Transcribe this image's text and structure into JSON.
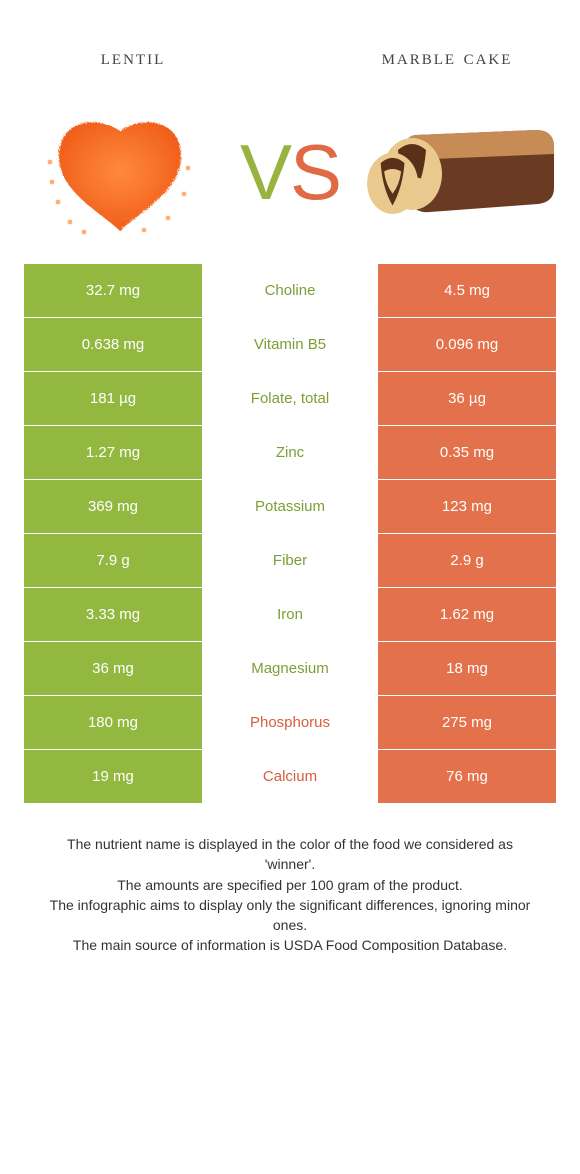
{
  "colors": {
    "lentil": "#93b840",
    "cake": "#e3714b",
    "lentil_text": "#7e9e36",
    "cake_text": "#d65f3d",
    "white": "#ffffff",
    "body": "#333333"
  },
  "header": {
    "left_title": "lentil",
    "right_title": "marble cake",
    "vs_v": "V",
    "vs_s": "S"
  },
  "nutrients": [
    {
      "name": "Choline",
      "left": "32.7 mg",
      "right": "4.5 mg",
      "winner": "left"
    },
    {
      "name": "Vitamin B5",
      "left": "0.638 mg",
      "right": "0.096 mg",
      "winner": "left"
    },
    {
      "name": "Folate, total",
      "left": "181 µg",
      "right": "36 µg",
      "winner": "left"
    },
    {
      "name": "Zinc",
      "left": "1.27 mg",
      "right": "0.35 mg",
      "winner": "left"
    },
    {
      "name": "Potassium",
      "left": "369 mg",
      "right": "123 mg",
      "winner": "left"
    },
    {
      "name": "Fiber",
      "left": "7.9 g",
      "right": "2.9 g",
      "winner": "left"
    },
    {
      "name": "Iron",
      "left": "3.33 mg",
      "right": "1.62 mg",
      "winner": "left"
    },
    {
      "name": "Magnesium",
      "left": "36 mg",
      "right": "18 mg",
      "winner": "left"
    },
    {
      "name": "Phosphorus",
      "left": "180 mg",
      "right": "275 mg",
      "winner": "right"
    },
    {
      "name": "Calcium",
      "left": "19 mg",
      "right": "76 mg",
      "winner": "right"
    }
  ],
  "footer": {
    "line1": "The nutrient name is displayed in the color of the food we considered as 'winner'.",
    "line2": "The amounts are specified per 100 gram of the product.",
    "line3": "The infographic aims to display only the significant differences, ignoring minor ones.",
    "line4": "The main source of information is USDA Food Composition Database."
  }
}
